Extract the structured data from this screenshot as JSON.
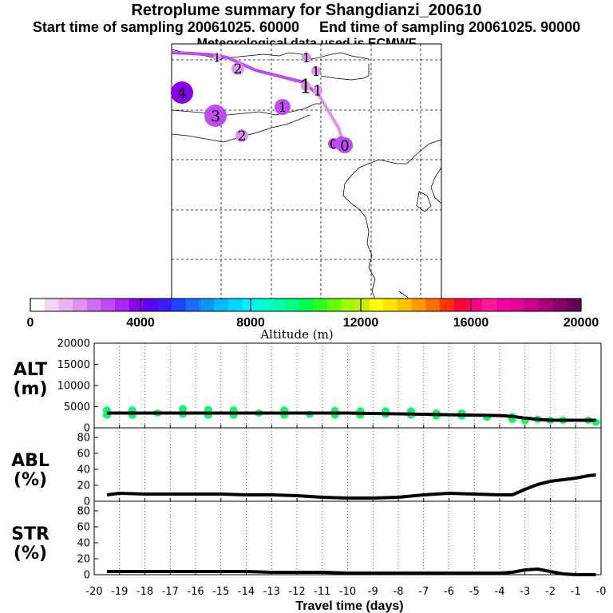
{
  "header": {
    "title": "Retroplume summary for Shangdianzi_200610",
    "start_label": "Start time of sampling 20061025. 60000",
    "end_label": "End time of sampling 20061025. 90000",
    "met_label": "Meteorological data used is ECMWF"
  },
  "colorbar": {
    "title": "Altitude (m)",
    "ticks": [
      "0",
      "4000",
      "8000",
      "12000",
      "16000",
      "20000"
    ],
    "colors": [
      "#ffffff",
      "#f2d4f7",
      "#eab3f2",
      "#e093ee",
      "#d06ef0",
      "#c24af2",
      "#a927f4",
      "#8a00ee",
      "#5d00f2",
      "#3a1cff",
      "#1d46ff",
      "#1a6dff",
      "#0a95ff",
      "#00b9ff",
      "#00d6ff",
      "#00f0ff",
      "#00ffd5",
      "#00ffae",
      "#00ff83",
      "#00ff53",
      "#29ff22",
      "#66ff00",
      "#9bff00",
      "#c7f000",
      "#ffff00",
      "#ffe600",
      "#ffc300",
      "#ff9a00",
      "#ff6f00",
      "#ff3400",
      "#ff003a",
      "#ff0080",
      "#ff1a9a",
      "#f400a6",
      "#e20099",
      "#c8008e",
      "#a70079",
      "#840066",
      "#660052"
    ]
  },
  "map": {
    "labels": [
      {
        "text": "4",
        "alt": 3900
      },
      {
        "text": "3",
        "alt": 2600
      },
      {
        "text": "2",
        "alt": 2000
      },
      {
        "text": "2",
        "alt": 2000
      },
      {
        "text": "1",
        "alt": 2600
      },
      {
        "text": "1",
        "alt": 2000
      },
      {
        "text": "1",
        "alt": 2000
      },
      {
        "text": "1",
        "alt": 2000
      },
      {
        "text": "1",
        "alt": 2000
      },
      {
        "text": "1",
        "alt": 2000
      },
      {
        "text": "0",
        "alt": 2600
      },
      {
        "text": "0",
        "alt": 2600
      },
      {
        "text": "0",
        "alt": 2600
      }
    ]
  },
  "chart_data": [
    {
      "type": "line",
      "title": "ALT (m)",
      "ylabel": "ALT (m)",
      "xlabel": "Travel time (days)",
      "xlim": [
        -20,
        0
      ],
      "ylim": [
        0,
        20000
      ],
      "yticks": [
        "20000",
        "15000",
        "10000",
        "5000",
        "0"
      ],
      "x": [
        -19.5,
        -19,
        -18,
        -17,
        -16,
        -15,
        -14,
        -13,
        -12,
        -11,
        -10,
        -9,
        -8,
        -7,
        -6,
        -5,
        -4,
        -3.5,
        -3,
        -2.5,
        -2,
        -1.5,
        -1,
        -0.5,
        -0.2
      ],
      "values": [
        3500,
        3500,
        3500,
        3500,
        3500,
        3500,
        3500,
        3500,
        3500,
        3500,
        3500,
        3400,
        3300,
        3200,
        3100,
        3000,
        2900,
        2700,
        2300,
        2000,
        1800,
        1800,
        1800,
        1800,
        1800
      ],
      "scatter_points": [
        [
          -19.5,
          3000
        ],
        [
          -19.5,
          4200
        ],
        [
          -18.5,
          3000
        ],
        [
          -18.5,
          4200
        ],
        [
          -17.5,
          3500
        ],
        [
          -16.5,
          3200
        ],
        [
          -16.5,
          4500
        ],
        [
          -15.5,
          3000
        ],
        [
          -15.5,
          4300
        ],
        [
          -14.5,
          3000
        ],
        [
          -14.5,
          4200
        ],
        [
          -13.5,
          3500
        ],
        [
          -12.5,
          3000
        ],
        [
          -12.5,
          4200
        ],
        [
          -11.5,
          3200
        ],
        [
          -10.5,
          3000
        ],
        [
          -10.5,
          4100
        ],
        [
          -9.5,
          3000
        ],
        [
          -9.5,
          4000
        ],
        [
          -8.5,
          3200
        ],
        [
          -8.5,
          4000
        ],
        [
          -7.5,
          3000
        ],
        [
          -7.5,
          4000
        ],
        [
          -6.5,
          3500
        ],
        [
          -6.5,
          2800
        ],
        [
          -5.5,
          3500
        ],
        [
          -5.5,
          2800
        ],
        [
          -4.5,
          2500
        ],
        [
          -3.5,
          2000
        ],
        [
          -3.5,
          2700
        ],
        [
          -3,
          1700
        ],
        [
          -2.5,
          2000
        ],
        [
          -2,
          1800
        ],
        [
          -1.5,
          1800
        ],
        [
          -0.5,
          1800
        ],
        [
          -0.2,
          1300
        ]
      ]
    },
    {
      "type": "line",
      "title": "ABL (%)",
      "ylabel": "ABL (%)",
      "xlabel": "Travel time (days)",
      "xlim": [
        -20,
        0
      ],
      "ylim": [
        0,
        90
      ],
      "yticks": [
        "80",
        "60",
        "40",
        "20",
        "0"
      ],
      "x": [
        -19.5,
        -19,
        -18,
        -17,
        -16,
        -15,
        -14,
        -13,
        -12,
        -11,
        -10,
        -9,
        -8,
        -7,
        -6,
        -5,
        -4,
        -3.5,
        -3,
        -2.5,
        -2,
        -1.5,
        -1,
        -0.5,
        -0.2
      ],
      "values": [
        8,
        10,
        9,
        9,
        9,
        9,
        8,
        8,
        7,
        5,
        4,
        4,
        5,
        8,
        10,
        9,
        8,
        8,
        15,
        21,
        25,
        27,
        29,
        32,
        33
      ]
    },
    {
      "type": "line",
      "title": "STR (%)",
      "ylabel": "STR (%)",
      "xlabel": "Travel time (days)",
      "xlim": [
        -20,
        0
      ],
      "ylim": [
        0,
        90
      ],
      "yticks": [
        "80",
        "60",
        "40",
        "20",
        "0"
      ],
      "x": [
        -19.5,
        -19,
        -18,
        -17,
        -16,
        -15,
        -14,
        -13,
        -12,
        -11,
        -10,
        -9,
        -8,
        -7,
        -6,
        -5,
        -4,
        -3.5,
        -3,
        -2.5,
        -2,
        -1.5,
        -1,
        -0.5,
        -0.2
      ],
      "values": [
        4,
        4,
        4,
        4,
        4,
        4,
        4,
        3,
        3,
        3,
        2,
        2,
        2,
        2,
        2,
        2,
        2,
        3,
        6,
        7,
        4,
        1,
        0,
        0,
        0
      ],
      "xticks": [
        "-20",
        "-19",
        "-18",
        "-17",
        "-16",
        "-15",
        "-14",
        "-13",
        "-12",
        "-11",
        "-10",
        "-9",
        "-8",
        "-7",
        "-6",
        "-5",
        "-4",
        "-3",
        "-2",
        "-1",
        "-0"
      ]
    }
  ],
  "colors": {
    "line": "#000000",
    "scatter": "#00ff66",
    "plume_far": "#c24af2",
    "plume_near": "#e093ee"
  }
}
